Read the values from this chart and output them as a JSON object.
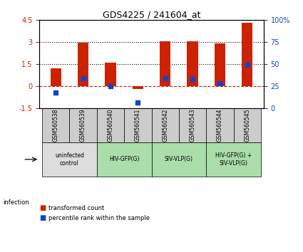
{
  "title": "GDS4225 / 241604_at",
  "samples": [
    "GSM560538",
    "GSM560539",
    "GSM560540",
    "GSM560541",
    "GSM560542",
    "GSM560543",
    "GSM560544",
    "GSM560545"
  ],
  "red_values": [
    1.2,
    2.95,
    1.6,
    -0.2,
    3.05,
    3.05,
    2.9,
    4.3
  ],
  "blue_values_raw": [
    -0.45,
    0.55,
    0.0,
    -1.1,
    0.55,
    0.5,
    0.2,
    1.45
  ],
  "ylim_left": [
    -1.5,
    4.5
  ],
  "ylim_right": [
    0,
    100
  ],
  "yticks_left": [
    -1.5,
    0.0,
    1.5,
    3.0,
    4.5
  ],
  "yticks_left_labels": [
    "-1.5",
    "0",
    "1.5",
    "3",
    "4.5"
  ],
  "yticks_right": [
    0,
    25,
    50,
    75,
    100
  ],
  "yticks_right_labels": [
    "0",
    "25",
    "50",
    "75",
    "100%"
  ],
  "hlines_dotted": [
    1.5,
    3.0
  ],
  "hline_dashed": 0.0,
  "bar_width": 0.4,
  "red_color": "#cc2200",
  "blue_color": "#1144cc",
  "groups": [
    {
      "label": "uninfected\ncontrol",
      "cols": [
        0,
        1
      ],
      "color": "#dddddd"
    },
    {
      "label": "HIV-GFP(G)",
      "cols": [
        2,
        3
      ],
      "color": "#aaddaa"
    },
    {
      "label": "SIV-VLP(G)",
      "cols": [
        4,
        5
      ],
      "color": "#aaddaa"
    },
    {
      "label": "HIV-GFP(G) +\nSIV-VLP(G)",
      "cols": [
        6,
        7
      ],
      "color": "#aaddaa"
    }
  ],
  "infection_label": "infection",
  "legend_red": "transformed count",
  "legend_blue": "percentile rank within the sample",
  "sample_row_bg": "#cccccc"
}
